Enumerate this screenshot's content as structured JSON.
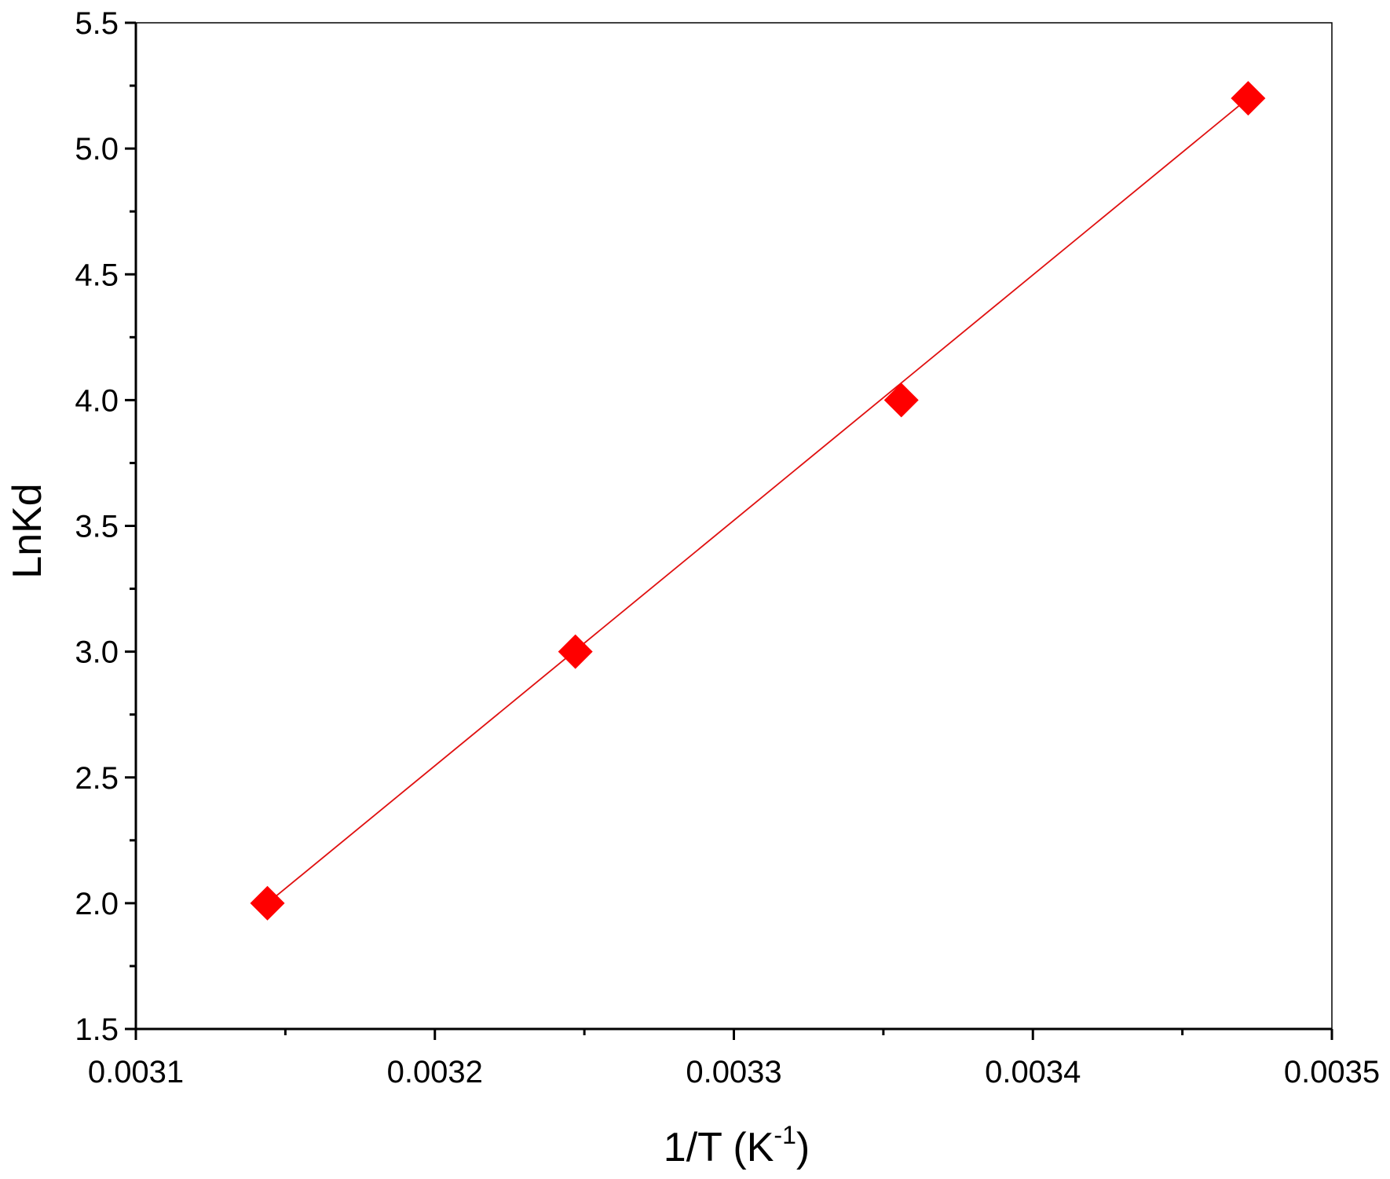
{
  "chart_data": {
    "type": "scatter",
    "title": "",
    "xlabel": "1/T (K",
    "xlabel_superscript": "-1",
    "xlabel_suffix": ")",
    "ylabel": "LnKd",
    "xlim": [
      0.0031,
      0.0035
    ],
    "ylim": [
      1.5,
      5.5
    ],
    "x_ticks": [
      "0.0031",
      "0.0032",
      "0.0033",
      "0.0034",
      "0.0035"
    ],
    "y_ticks": [
      "1.5",
      "2.0",
      "2.5",
      "3.0",
      "3.5",
      "4.0",
      "4.5",
      "5.0",
      "5.5"
    ],
    "grid": false,
    "legend": false,
    "series": [
      {
        "marker": "diamond",
        "color": "#ff0000",
        "x": [
          0.003144,
          0.003247,
          0.003356,
          0.003472
        ],
        "y": [
          2.0,
          3.0,
          4.0,
          5.2
        ]
      }
    ],
    "fit_line": {
      "color": "#e01010",
      "x": [
        0.003144,
        0.003472
      ],
      "y": [
        2.0,
        5.2
      ]
    }
  }
}
